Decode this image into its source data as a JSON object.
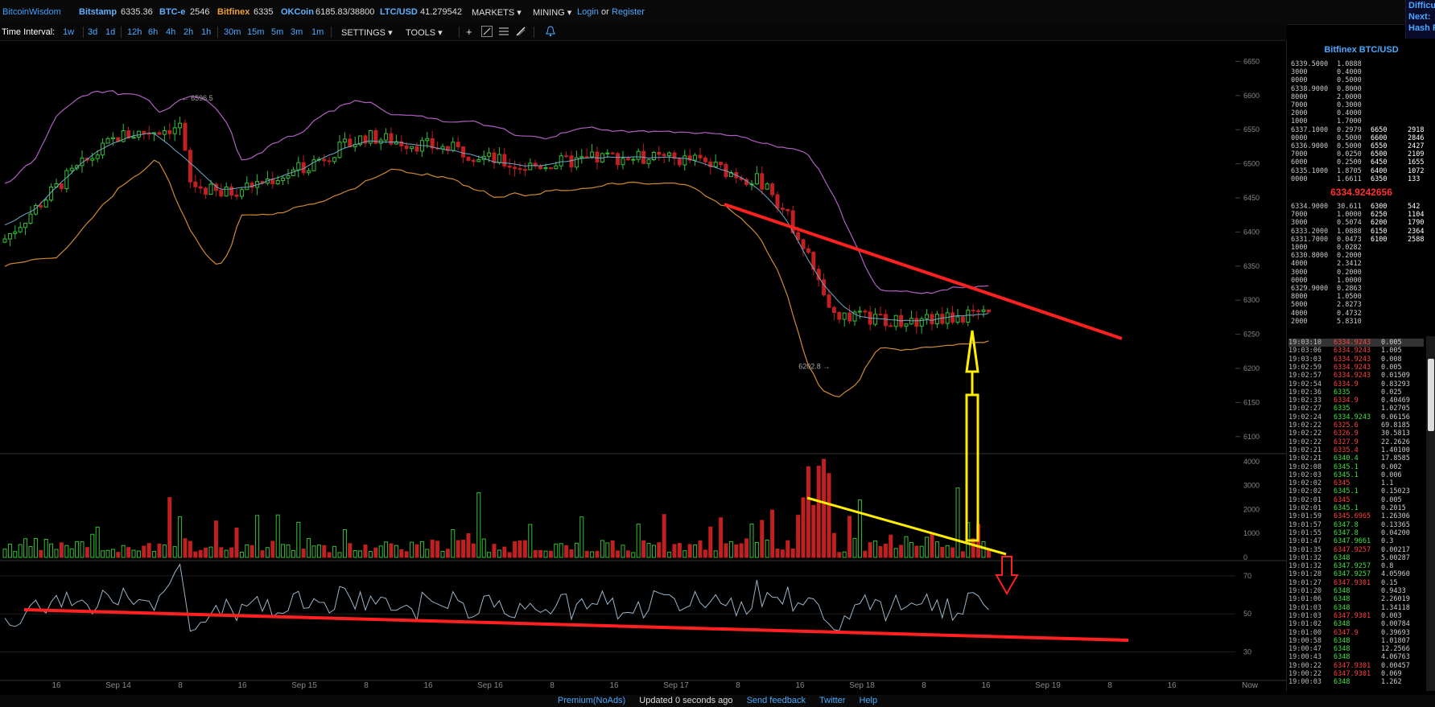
{
  "header": {
    "brand": "BitcoinWisdom",
    "exchanges": [
      {
        "name": "Bitstamp",
        "price": "6335.36"
      },
      {
        "name": "BTC-e",
        "price": "2546"
      },
      {
        "name": "Bitfinex",
        "price": "6335"
      },
      {
        "name": "OKCoin",
        "price": "6185.83/38800"
      },
      {
        "name": "LTC/USD",
        "price": "41.279542"
      }
    ],
    "markets_label": "MARKETS",
    "mining_label": "MINING",
    "login_label": "Login",
    "or_label": "or",
    "register_label": "Register",
    "side_labels": [
      "Difficu",
      "Next:",
      "Hash R"
    ]
  },
  "toolbar": {
    "label": "Time Interval:",
    "groups": [
      [
        "1w"
      ],
      [
        "3d",
        "1d"
      ],
      [
        "12h",
        "6h",
        "4h",
        "2h",
        "1h"
      ],
      [
        "30m",
        "15m",
        "5m",
        "3m",
        "1m"
      ]
    ],
    "settings_label": "SETTINGS",
    "tools_label": "TOOLS",
    "icons": [
      "crosshair-icon",
      "line-draw-icon",
      "horizontal-lines-icon",
      "brush-icon",
      "alert-bell-icon"
    ]
  },
  "chart_data": {
    "type": "candlestick",
    "price_axis": {
      "ticks": [
        "6650",
        "6600",
        "6550",
        "6500",
        "6450",
        "6400",
        "6350",
        "6300",
        "6250",
        "6200",
        "6150",
        "6100"
      ],
      "range": [
        6075,
        6680
      ]
    },
    "volume_axis": {
      "ticks": [
        "4000",
        "3000",
        "2000",
        "1000",
        "0"
      ],
      "range": [
        0,
        4200
      ]
    },
    "indicator_axis": {
      "ticks": [
        "70",
        "50",
        "30"
      ],
      "range": [
        15,
        78
      ]
    },
    "time_axis": {
      "ticks": [
        "16",
        "Sep 14",
        "8",
        "16",
        "Sep 15",
        "8",
        "16",
        "Sep 16",
        "8",
        "16",
        "Sep 17",
        "8",
        "16",
        "Sep 18",
        "8",
        "16",
        "Sep 19",
        "8",
        "16",
        "Now"
      ]
    },
    "annotations": {
      "high_label": "6596.5",
      "low_label": "6202.8"
    },
    "colors": {
      "up": "#35c035",
      "down": "#c02020",
      "upper_band": "#b060c0",
      "lower_band": "#d08a30",
      "ma": "#70a8c8",
      "trendline_red": "#ff2020",
      "trendline_yellow": "#ffee00"
    }
  },
  "orderbook": {
    "title": "Bitfinex BTC/USD",
    "current_price": "6334.9242656",
    "asks": [
      [
        "6339.5000",
        "1.0888",
        "",
        ""
      ],
      [
        "3000",
        "0.4000",
        "",
        ""
      ],
      [
        "0000",
        "0.5000",
        "",
        ""
      ],
      [
        "6338.9000",
        "0.8000",
        "",
        ""
      ],
      [
        "8000",
        "2.0000",
        "",
        ""
      ],
      [
        "7000",
        "0.3000",
        "",
        ""
      ],
      [
        "2000",
        "0.4000",
        "",
        ""
      ],
      [
        "1000",
        "1.7000",
        "",
        ""
      ],
      [
        "6337.1000",
        "0.2979",
        "6650",
        "2918"
      ],
      [
        "0000",
        "0.5000",
        "6600",
        "2846"
      ],
      [
        "6336.9000",
        "0.5000",
        "6550",
        "2427"
      ],
      [
        "7000",
        "0.0250",
        "6500",
        "2109"
      ],
      [
        "6000",
        "0.2500",
        "6450",
        "1655"
      ],
      [
        "6335.1000",
        "1.8705",
        "6400",
        "1072"
      ],
      [
        "0000",
        "1.6611",
        "6350",
        "133"
      ]
    ],
    "bids": [
      [
        "6334.9000",
        "30.611",
        "6300",
        "542"
      ],
      [
        "7000",
        "1.0000",
        "6250",
        "1104"
      ],
      [
        "3000",
        "0.5074",
        "6200",
        "1790"
      ],
      [
        "6333.2000",
        "1.0888",
        "6150",
        "2364"
      ],
      [
        "6331.7000",
        "0.0473",
        "6100",
        "2588"
      ],
      [
        "1000",
        "0.0282",
        "",
        ""
      ],
      [
        "6330.8000",
        "0.2000",
        "",
        ""
      ],
      [
        "4000",
        "2.3412",
        "",
        ""
      ],
      [
        "3000",
        "0.2000",
        "",
        ""
      ],
      [
        "0000",
        "1.0000",
        "",
        ""
      ],
      [
        "6329.9000",
        "0.2863",
        "",
        ""
      ],
      [
        "8000",
        "1.0500",
        "",
        ""
      ],
      [
        "5000",
        "2.8273",
        "",
        ""
      ],
      [
        "4000",
        "0.4732",
        "",
        ""
      ],
      [
        "2000",
        "5.8310",
        "",
        ""
      ]
    ]
  },
  "trades": [
    [
      "19:03:10",
      "6334.9243",
      "0.005",
      "down"
    ],
    [
      "19:03:06",
      "6334.9243",
      "1.005",
      "down"
    ],
    [
      "19:03:03",
      "6334.9243",
      "0.008",
      "down"
    ],
    [
      "19:02:59",
      "6334.9243",
      "0.005",
      "down"
    ],
    [
      "19:02:57",
      "6334.9243",
      "0.01509",
      "down"
    ],
    [
      "19:02:54",
      "6334.9",
      "0.83293",
      "down"
    ],
    [
      "19:02:36",
      "6335",
      "0.025",
      "up"
    ],
    [
      "19:02:33",
      "6334.9",
      "0.40469",
      "down"
    ],
    [
      "19:02:27",
      "6335",
      "1.02705",
      "up"
    ],
    [
      "19:02:24",
      "6334.9243",
      "0.06156",
      "up"
    ],
    [
      "19:02:22",
      "6325.6",
      "69.8185",
      "down"
    ],
    [
      "19:02:22",
      "6326.9",
      "30.5813",
      "down"
    ],
    [
      "19:02:22",
      "6327.9",
      "22.2626",
      "down"
    ],
    [
      "19:02:21",
      "6335.4",
      "1.40100",
      "down"
    ],
    [
      "19:02:21",
      "6340.4",
      "17.8585",
      "up"
    ],
    [
      "19:02:08",
      "6345.1",
      "0.002",
      "up"
    ],
    [
      "19:02:03",
      "6345.1",
      "0.006",
      "up"
    ],
    [
      "19:02:02",
      "6345",
      "1.1",
      "down"
    ],
    [
      "19:02:02",
      "6345.1",
      "0.15023",
      "up"
    ],
    [
      "19:02:01",
      "6345",
      "0.005",
      "down"
    ],
    [
      "19:02:01",
      "6345.1",
      "0.2015",
      "up"
    ],
    [
      "19:01:59",
      "6345.6965",
      "1.26306",
      "down"
    ],
    [
      "19:01:57",
      "6347.8",
      "0.13365",
      "up"
    ],
    [
      "19:01:55",
      "6347.8",
      "0.04200",
      "up"
    ],
    [
      "19:01:47",
      "6347.9661",
      "0.3",
      "up"
    ],
    [
      "19:01:35",
      "6347.9257",
      "0.00217",
      "down"
    ],
    [
      "19:01:32",
      "6348",
      "5.00287",
      "up"
    ],
    [
      "19:01:32",
      "6347.9257",
      "0.8",
      "up"
    ],
    [
      "19:01:28",
      "6347.9257",
      "4.05960",
      "up"
    ],
    [
      "19:01:27",
      "6347.9301",
      "0.15",
      "down"
    ],
    [
      "19:01:20",
      "6348",
      "0.9433",
      "up"
    ],
    [
      "19:01:06",
      "6348",
      "2.26019",
      "up"
    ],
    [
      "19:01:03",
      "6348",
      "1.34118",
      "up"
    ],
    [
      "19:01:03",
      "6347.9301",
      "0.003",
      "down"
    ],
    [
      "19:01:02",
      "6348",
      "0.00784",
      "up"
    ],
    [
      "19:01:00",
      "6347.9",
      "0.39693",
      "down"
    ],
    [
      "19:00:58",
      "6348",
      "1.01807",
      "up"
    ],
    [
      "19:00:47",
      "6348",
      "12.2566",
      "up"
    ],
    [
      "19:00:43",
      "6348",
      "4.06763",
      "up"
    ],
    [
      "19:00:22",
      "6347.9301",
      "0.00457",
      "down"
    ],
    [
      "19:00:22",
      "6347.9301",
      "0.069",
      "down"
    ],
    [
      "19:00:03",
      "6348",
      "1.262",
      "up"
    ]
  ],
  "footer": {
    "premium": "Premium(NoAds)",
    "updated": "Updated 0 seconds ago",
    "feedback": "Send feedback",
    "twitter": "Twitter",
    "help": "Help"
  }
}
